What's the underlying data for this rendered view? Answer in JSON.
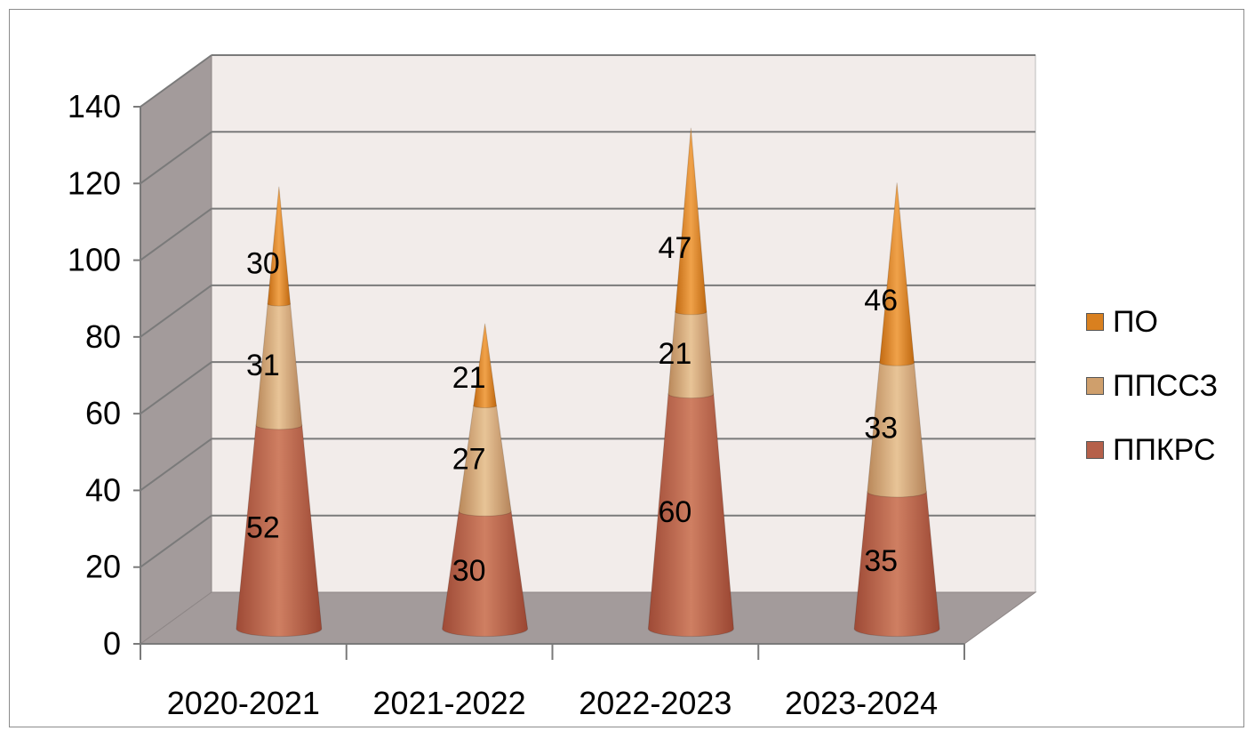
{
  "chart_data": {
    "type": "bar",
    "style": "3d-stacked-cone",
    "categories": [
      "2020-2021",
      "2021-2022",
      "2022-2023",
      "2023-2024"
    ],
    "series": [
      {
        "name": "ППКРС",
        "values": [
          52,
          30,
          60,
          35
        ],
        "color": "#b5604a"
      },
      {
        "name": "ППССЗ",
        "values": [
          31,
          27,
          21,
          33
        ],
        "color": "#cf9f6c"
      },
      {
        "name": "ПО",
        "values": [
          30,
          21,
          47,
          46
        ],
        "color": "#d9801f"
      }
    ],
    "ylim": [
      0,
      140
    ],
    "yticks": [
      0,
      20,
      40,
      60,
      80,
      100,
      120,
      140
    ],
    "grid": true,
    "legend": "right"
  }
}
